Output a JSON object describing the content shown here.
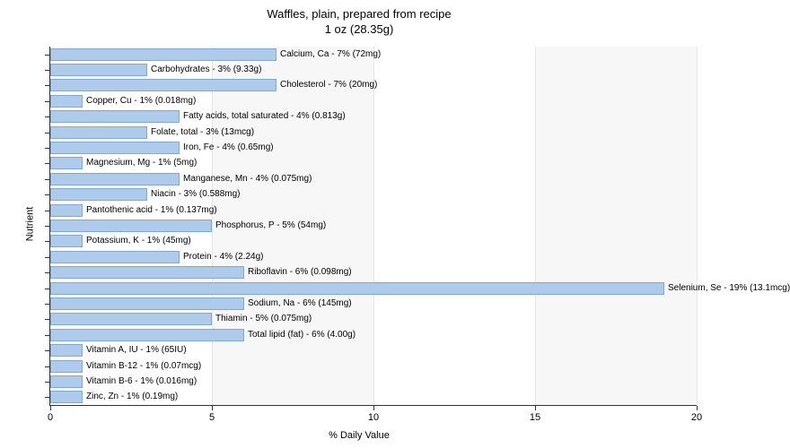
{
  "chart": {
    "type": "bar-horizontal",
    "title_line1": "Waffles, plain, prepared from recipe",
    "title_line2": "1 oz (28.35g)",
    "title_fontsize": 13,
    "xlabel": "% Daily Value",
    "ylabel": "Nutrient",
    "label_fontsize": 11,
    "xlim": [
      0,
      20
    ],
    "xticks": [
      0,
      5,
      10,
      15,
      20
    ],
    "background_color": "#ffffff",
    "shade_color": "#f7f7f7",
    "grid_color": "#e5e5e5",
    "axis_color": "#333333",
    "bar_fill": "#aecbeb",
    "bar_stroke": "#7fa8d4",
    "bar_label_fontsize": 10,
    "shade_bands": [
      [
        5,
        10
      ],
      [
        15,
        20
      ]
    ],
    "nutrients": [
      {
        "label": "Calcium, Ca - 7% (72mg)",
        "value": 7
      },
      {
        "label": "Carbohydrates - 3% (9.33g)",
        "value": 3
      },
      {
        "label": "Cholesterol - 7% (20mg)",
        "value": 7
      },
      {
        "label": "Copper, Cu - 1% (0.018mg)",
        "value": 1
      },
      {
        "label": "Fatty acids, total saturated - 4% (0.813g)",
        "value": 4
      },
      {
        "label": "Folate, total - 3% (13mcg)",
        "value": 3
      },
      {
        "label": "Iron, Fe - 4% (0.65mg)",
        "value": 4
      },
      {
        "label": "Magnesium, Mg - 1% (5mg)",
        "value": 1
      },
      {
        "label": "Manganese, Mn - 4% (0.075mg)",
        "value": 4
      },
      {
        "label": "Niacin - 3% (0.588mg)",
        "value": 3
      },
      {
        "label": "Pantothenic acid - 1% (0.137mg)",
        "value": 1
      },
      {
        "label": "Phosphorus, P - 5% (54mg)",
        "value": 5
      },
      {
        "label": "Potassium, K - 1% (45mg)",
        "value": 1
      },
      {
        "label": "Protein - 4% (2.24g)",
        "value": 4
      },
      {
        "label": "Riboflavin - 6% (0.098mg)",
        "value": 6
      },
      {
        "label": "Selenium, Se - 19% (13.1mcg)",
        "value": 19
      },
      {
        "label": "Sodium, Na - 6% (145mg)",
        "value": 6
      },
      {
        "label": "Thiamin - 5% (0.075mg)",
        "value": 5
      },
      {
        "label": "Total lipid (fat) - 6% (4.00g)",
        "value": 6
      },
      {
        "label": "Vitamin A, IU - 1% (65IU)",
        "value": 1
      },
      {
        "label": "Vitamin B-12 - 1% (0.07mcg)",
        "value": 1
      },
      {
        "label": "Vitamin B-6 - 1% (0.016mg)",
        "value": 1
      },
      {
        "label": "Zinc, Zn - 1% (0.19mg)",
        "value": 1
      }
    ]
  }
}
